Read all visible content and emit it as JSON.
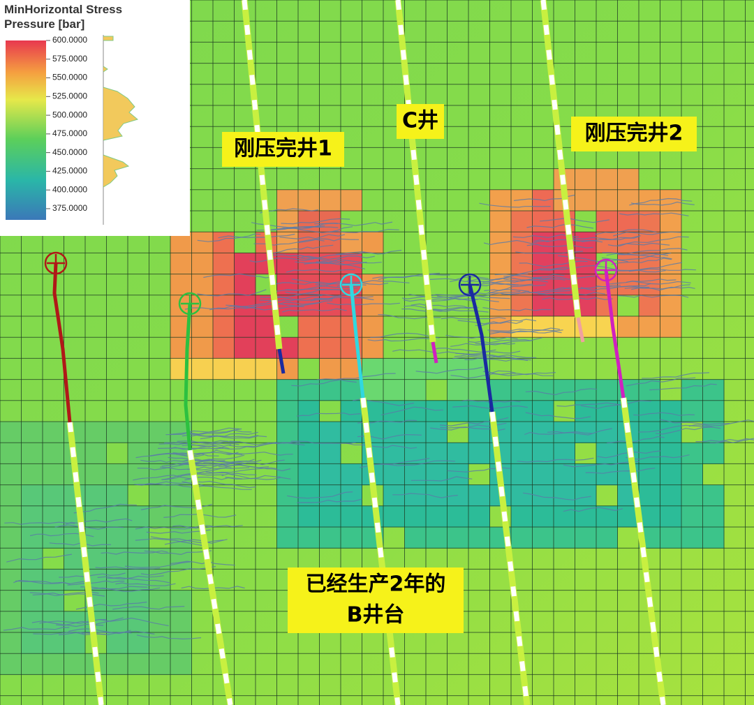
{
  "legend": {
    "title": [
      "MinHorizontal Stress",
      "Pressure [bar]"
    ],
    "scale": {
      "lim": [
        360,
        600
      ],
      "ticks": [
        {
          "value": 600,
          "label": "600.0000"
        },
        {
          "value": 575,
          "label": "575.0000"
        },
        {
          "value": 550,
          "label": "550.0000"
        },
        {
          "value": 525,
          "label": "525.0000"
        },
        {
          "value": 500,
          "label": "500.0000"
        },
        {
          "value": 475,
          "label": "475.0000"
        },
        {
          "value": 450,
          "label": "450.0000"
        },
        {
          "value": 425,
          "label": "425.0000"
        },
        {
          "value": 400,
          "label": "400.0000"
        },
        {
          "value": 375,
          "label": "375.0000"
        }
      ]
    }
  },
  "annotations": [
    {
      "lines": [
        "刚压完井1"
      ]
    },
    {
      "lines": [
        "C井"
      ]
    },
    {
      "lines": [
        "刚压完井2"
      ]
    },
    {
      "lines": [
        "已经生产2年的",
        "B井台"
      ]
    }
  ]
}
